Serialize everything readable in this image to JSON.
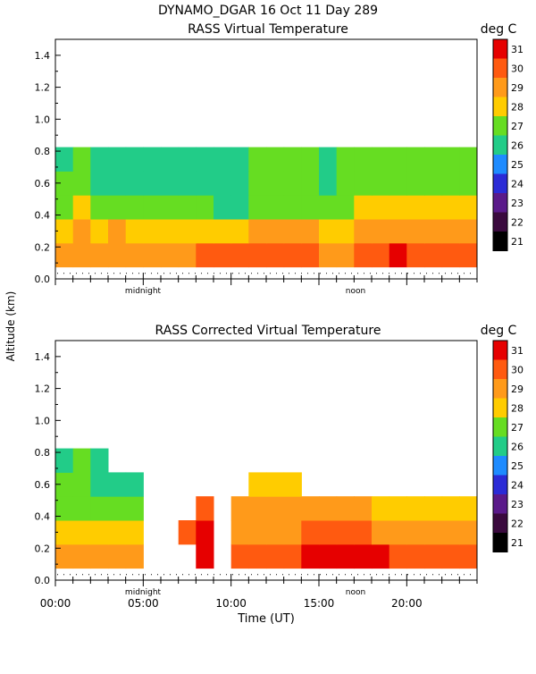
{
  "header": {
    "title": "DYNAMO_DGAR  16 Oct 11 Day 289"
  },
  "shared": {
    "ylabel": "Altitude (km)",
    "xlabel": "Time (UT)",
    "unit_label": "deg C",
    "marker_midnight": "midnight",
    "marker_noon": "noon"
  },
  "chart_data": [
    {
      "type": "heatmap",
      "title": "RASS Virtual Temperature",
      "x": [
        0.5,
        1.5,
        2.5,
        3.5,
        4.5,
        5.5,
        6.5,
        7.5,
        8.5,
        9.5,
        10.5,
        11.5,
        12.5,
        13.5,
        14.5,
        15.5,
        16.5,
        17.5,
        18.5,
        19.5,
        20.5,
        21.5,
        22.5,
        23.5
      ],
      "altitudes": [
        0.15,
        0.3,
        0.45,
        0.6,
        0.75
      ],
      "values": [
        [
          29,
          29,
          29,
          29,
          29,
          29,
          29,
          29,
          30,
          30,
          30,
          30,
          30,
          30,
          30,
          29,
          29,
          30,
          30,
          31,
          30,
          30,
          30,
          30
        ],
        [
          28,
          29,
          28,
          29,
          28,
          28,
          28,
          28,
          28,
          28,
          28,
          29,
          29,
          29,
          29,
          28,
          28,
          29,
          29,
          29,
          29,
          29,
          29,
          29
        ],
        [
          27,
          28,
          27,
          27,
          27,
          27,
          27,
          27,
          27,
          26,
          26,
          27,
          27,
          27,
          27,
          27,
          27,
          28,
          28,
          28,
          28,
          28,
          28,
          28
        ],
        [
          27,
          27,
          26,
          26,
          26,
          26,
          26,
          26,
          26,
          26,
          26,
          27,
          27,
          27,
          27,
          26,
          27,
          27,
          27,
          27,
          27,
          27,
          27,
          27
        ],
        [
          26,
          27,
          26,
          26,
          26,
          26,
          26,
          26,
          26,
          26,
          26,
          27,
          27,
          27,
          27,
          26,
          27,
          27,
          27,
          27,
          27,
          27,
          27,
          27
        ]
      ],
      "xlim": [
        0,
        24
      ],
      "ylim": [
        0,
        1.5
      ],
      "color_range": [
        21,
        31
      ],
      "colorbar_ticks": [
        31,
        30,
        29,
        28,
        27,
        26,
        25,
        24,
        23,
        22,
        21
      ],
      "yticks": [
        "0.0",
        "0.2",
        "0.4",
        "0.6",
        "0.8",
        "1.0",
        "1.2",
        "1.4"
      ],
      "xtick_labels": [],
      "xlabel": "",
      "grid": false
    },
    {
      "type": "heatmap",
      "title": "RASS Corrected Virtual Temperature",
      "x": [
        0.5,
        1.5,
        2.5,
        3.5,
        4.5,
        5.5,
        6.5,
        7.5,
        8.5,
        9.5,
        10.5,
        11.5,
        12.5,
        13.5,
        14.5,
        15.5,
        16.5,
        17.5,
        18.5,
        19.5,
        20.5,
        21.5,
        22.5,
        23.5
      ],
      "altitudes": [
        0.15,
        0.3,
        0.45,
        0.6,
        0.75
      ],
      "values": [
        [
          29,
          29,
          29,
          29,
          29,
          null,
          null,
          null,
          31,
          null,
          30,
          30,
          30,
          30,
          31,
          31,
          31,
          31,
          31,
          30,
          30,
          30,
          30,
          30
        ],
        [
          28,
          28,
          28,
          28,
          28,
          null,
          null,
          30,
          31,
          null,
          29,
          29,
          29,
          29,
          30,
          30,
          30,
          30,
          29,
          29,
          29,
          29,
          29,
          29
        ],
        [
          27,
          27,
          27,
          27,
          27,
          null,
          null,
          null,
          30,
          null,
          29,
          29,
          29,
          29,
          29,
          29,
          29,
          29,
          28,
          28,
          28,
          28,
          28,
          28
        ],
        [
          27,
          27,
          26,
          26,
          26,
          null,
          null,
          null,
          null,
          null,
          null,
          28,
          28,
          28,
          null,
          null,
          null,
          null,
          null,
          null,
          null,
          null,
          null,
          null
        ],
        [
          26,
          27,
          26,
          null,
          null,
          null,
          null,
          null,
          null,
          null,
          null,
          null,
          null,
          null,
          null,
          null,
          null,
          null,
          null,
          null,
          null,
          null,
          null,
          null
        ]
      ],
      "xlim": [
        0,
        24
      ],
      "ylim": [
        0,
        1.5
      ],
      "color_range": [
        21,
        31
      ],
      "colorbar_ticks": [
        31,
        30,
        29,
        28,
        27,
        26,
        25,
        24,
        23,
        22,
        21
      ],
      "yticks": [
        "0.0",
        "0.2",
        "0.4",
        "0.6",
        "0.8",
        "1.0",
        "1.2",
        "1.4"
      ],
      "xtick_labels": [
        "00:00",
        "05:00",
        "10:00",
        "15:00",
        "20:00"
      ],
      "xlabel": "Time (UT)",
      "grid": false
    }
  ],
  "colors": {
    "palette": [
      "#000000",
      "#3a0a3e",
      "#5a1a8a",
      "#2b2bd6",
      "#1e8bff",
      "#22cc88",
      "#66dd22",
      "#ffcc00",
      "#ff9a1a",
      "#ff5a10",
      "#e60000"
    ]
  }
}
